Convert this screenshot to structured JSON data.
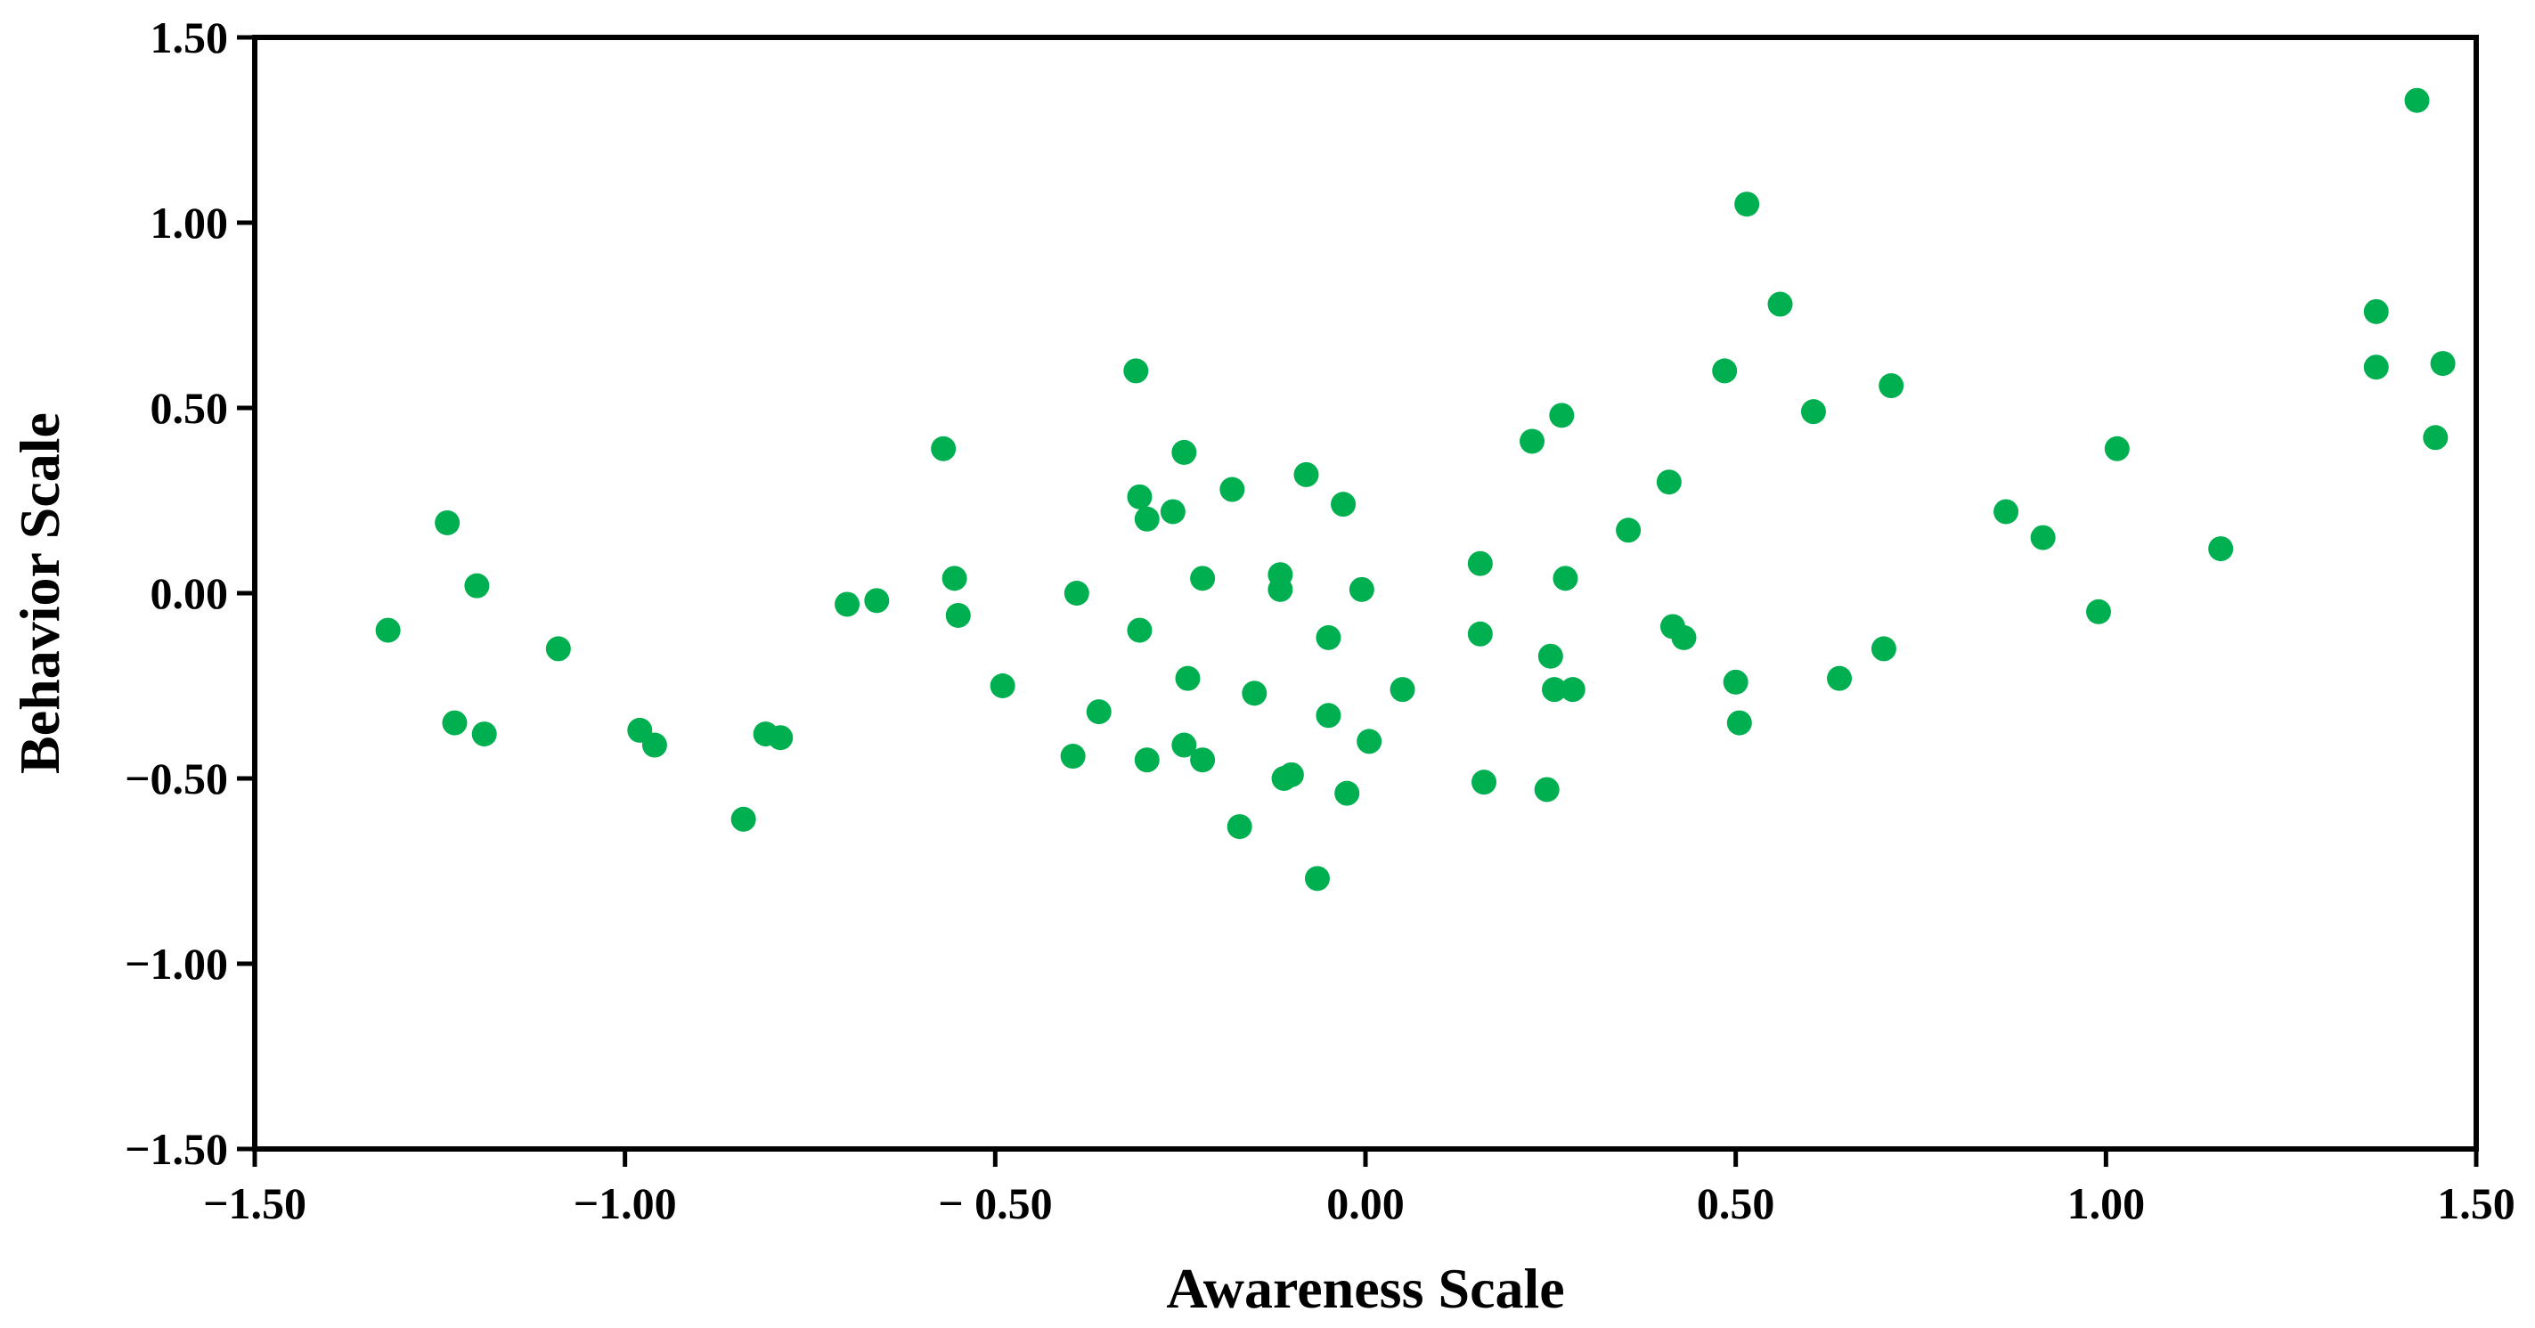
{
  "chart_data": {
    "type": "scatter",
    "title": "",
    "xlabel": "Awareness Scale",
    "ylabel": "Behavior Scale",
    "xlim": [
      -1.5,
      1.5
    ],
    "ylim": [
      -1.5,
      1.5
    ],
    "xticks": [
      -1.5,
      -1.0,
      -0.5,
      0.0,
      0.5,
      1.0,
      1.5
    ],
    "yticks": [
      -1.5,
      -1.0,
      -0.5,
      0.0,
      0.5,
      1.0,
      1.5
    ],
    "xtick_labels": [
      "−1.50",
      "−1.00",
      "− 0.50",
      "0.00",
      "0.50",
      "1.00",
      "1.50"
    ],
    "ytick_labels": [
      "−1.50",
      "−1.00",
      "−0.50",
      "0.00",
      "0.50",
      "1.00",
      "1.50"
    ],
    "grid": false,
    "marker_color": "#00b050",
    "series": [
      {
        "points": [
          [
            -1.32,
            -0.1
          ],
          [
            -1.24,
            0.19
          ],
          [
            -1.23,
            -0.35
          ],
          [
            -1.2,
            0.02
          ],
          [
            -1.19,
            -0.38
          ],
          [
            -1.09,
            -0.15
          ],
          [
            -0.98,
            -0.37
          ],
          [
            -0.96,
            -0.41
          ],
          [
            -0.84,
            -0.61
          ],
          [
            -0.81,
            -0.38
          ],
          [
            -0.79,
            -0.39
          ],
          [
            -0.7,
            -0.03
          ],
          [
            -0.66,
            -0.02
          ],
          [
            -0.57,
            0.39
          ],
          [
            -0.555,
            0.04
          ],
          [
            -0.55,
            -0.06
          ],
          [
            -0.49,
            -0.25
          ],
          [
            -0.395,
            -0.44
          ],
          [
            -0.39,
            0.0
          ],
          [
            -0.36,
            -0.32
          ],
          [
            -0.31,
            0.6
          ],
          [
            -0.305,
            0.26
          ],
          [
            -0.305,
            -0.1
          ],
          [
            -0.295,
            0.2
          ],
          [
            -0.295,
            -0.45
          ],
          [
            -0.26,
            0.22
          ],
          [
            -0.245,
            0.38
          ],
          [
            -0.245,
            -0.41
          ],
          [
            -0.24,
            -0.23
          ],
          [
            -0.22,
            0.04
          ],
          [
            -0.22,
            -0.45
          ],
          [
            -0.18,
            0.28
          ],
          [
            -0.17,
            -0.63
          ],
          [
            -0.15,
            -0.27
          ],
          [
            -0.115,
            0.05
          ],
          [
            -0.115,
            0.01
          ],
          [
            -0.11,
            -0.5
          ],
          [
            -0.1,
            -0.49
          ],
          [
            -0.08,
            0.32
          ],
          [
            -0.065,
            -0.77
          ],
          [
            -0.05,
            -0.12
          ],
          [
            -0.05,
            -0.33
          ],
          [
            -0.03,
            0.24
          ],
          [
            -0.025,
            -0.54
          ],
          [
            -0.005,
            0.01
          ],
          [
            0.005,
            -0.4
          ],
          [
            0.05,
            -0.26
          ],
          [
            0.155,
            0.08
          ],
          [
            0.155,
            -0.11
          ],
          [
            0.16,
            -0.51
          ],
          [
            0.225,
            0.41
          ],
          [
            0.245,
            -0.53
          ],
          [
            0.25,
            -0.17
          ],
          [
            0.255,
            -0.26
          ],
          [
            0.265,
            0.48
          ],
          [
            0.27,
            0.04
          ],
          [
            0.28,
            -0.26
          ],
          [
            0.355,
            0.17
          ],
          [
            0.41,
            0.3
          ],
          [
            0.415,
            -0.09
          ],
          [
            0.43,
            -0.12
          ],
          [
            0.485,
            0.6
          ],
          [
            0.5,
            -0.24
          ],
          [
            0.505,
            -0.35
          ],
          [
            0.515,
            1.05
          ],
          [
            0.56,
            0.78
          ],
          [
            0.605,
            0.49
          ],
          [
            0.64,
            -0.23
          ],
          [
            0.7,
            -0.15
          ],
          [
            0.71,
            0.56
          ],
          [
            0.865,
            0.22
          ],
          [
            0.915,
            0.15
          ],
          [
            0.99,
            -0.05
          ],
          [
            1.015,
            0.39
          ],
          [
            1.155,
            0.12
          ],
          [
            1.365,
            0.76
          ],
          [
            1.365,
            0.61
          ],
          [
            1.42,
            1.33
          ],
          [
            1.445,
            0.42
          ],
          [
            1.455,
            0.62
          ]
        ]
      }
    ]
  }
}
